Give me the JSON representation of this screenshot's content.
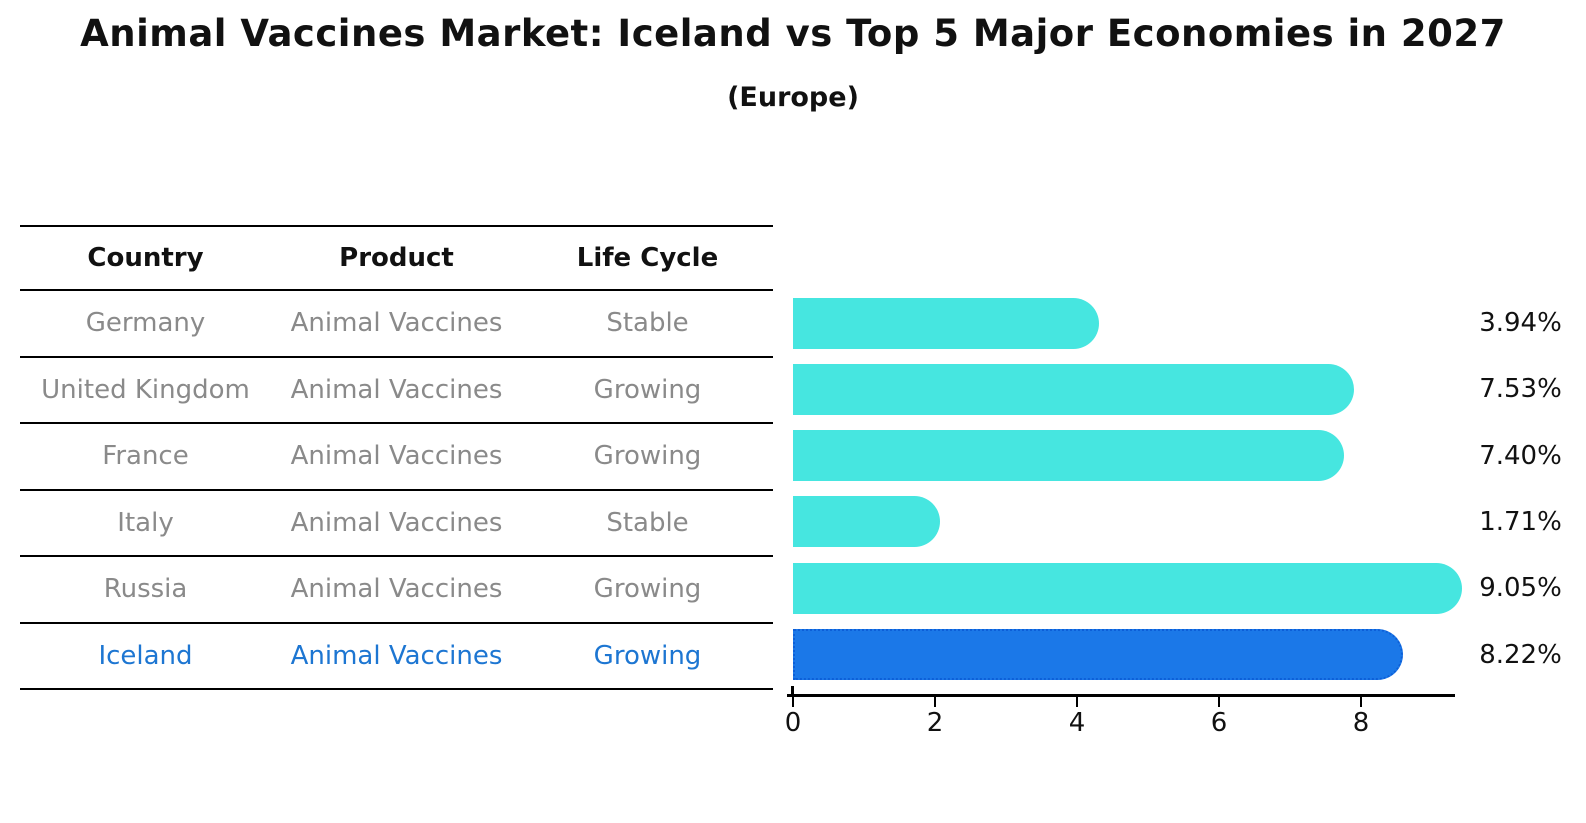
{
  "title": "Animal Vaccines Market: Iceland vs Top 5 Major Economies in 2027",
  "subtitle": "(Europe)",
  "table": {
    "headers": [
      "Country",
      "Product",
      "Life Cycle"
    ],
    "rows": [
      {
        "country": "Germany",
        "product": "Animal Vaccines",
        "life_cycle": "Stable",
        "highlighted": false
      },
      {
        "country": "United Kingdom",
        "product": "Animal Vaccines",
        "life_cycle": "Growing",
        "highlighted": false
      },
      {
        "country": "France",
        "product": "Animal Vaccines",
        "life_cycle": "Growing",
        "highlighted": false
      },
      {
        "country": "Italy",
        "product": "Animal Vaccines",
        "life_cycle": "Stable",
        "highlighted": false
      },
      {
        "country": "Russia",
        "product": "Animal Vaccines",
        "life_cycle": "Growing",
        "highlighted": false
      },
      {
        "country": "Iceland",
        "product": "Animal Vaccines",
        "life_cycle": "Growing",
        "highlighted": true
      }
    ]
  },
  "chart_data": {
    "type": "bar",
    "orientation": "horizontal",
    "title": "Animal Vaccines Market: Iceland vs Top 5 Major Economies in 2027",
    "subtitle": "(Europe)",
    "categories": [
      "Germany",
      "United Kingdom",
      "France",
      "Italy",
      "Russia",
      "Iceland"
    ],
    "values": [
      3.94,
      7.53,
      7.4,
      1.71,
      9.05,
      8.22
    ],
    "value_labels": [
      "3.94%",
      "7.53%",
      "7.40%",
      "1.71%",
      "9.05%",
      "8.22%"
    ],
    "xlabel": "",
    "ylabel": "",
    "xticks": [
      0,
      2,
      4,
      6,
      8
    ],
    "xlim": [
      0,
      9.35
    ],
    "grid": false,
    "legend": "none",
    "highlight_category": "Iceland",
    "colors": {
      "bar": "#46e6e0",
      "highlight_bar": "#1b78e8",
      "highlight_border": "#0d5fd8",
      "highlight_text": "#1d76d2",
      "text": "#111111",
      "muted_text": "#8a8a8a"
    }
  }
}
